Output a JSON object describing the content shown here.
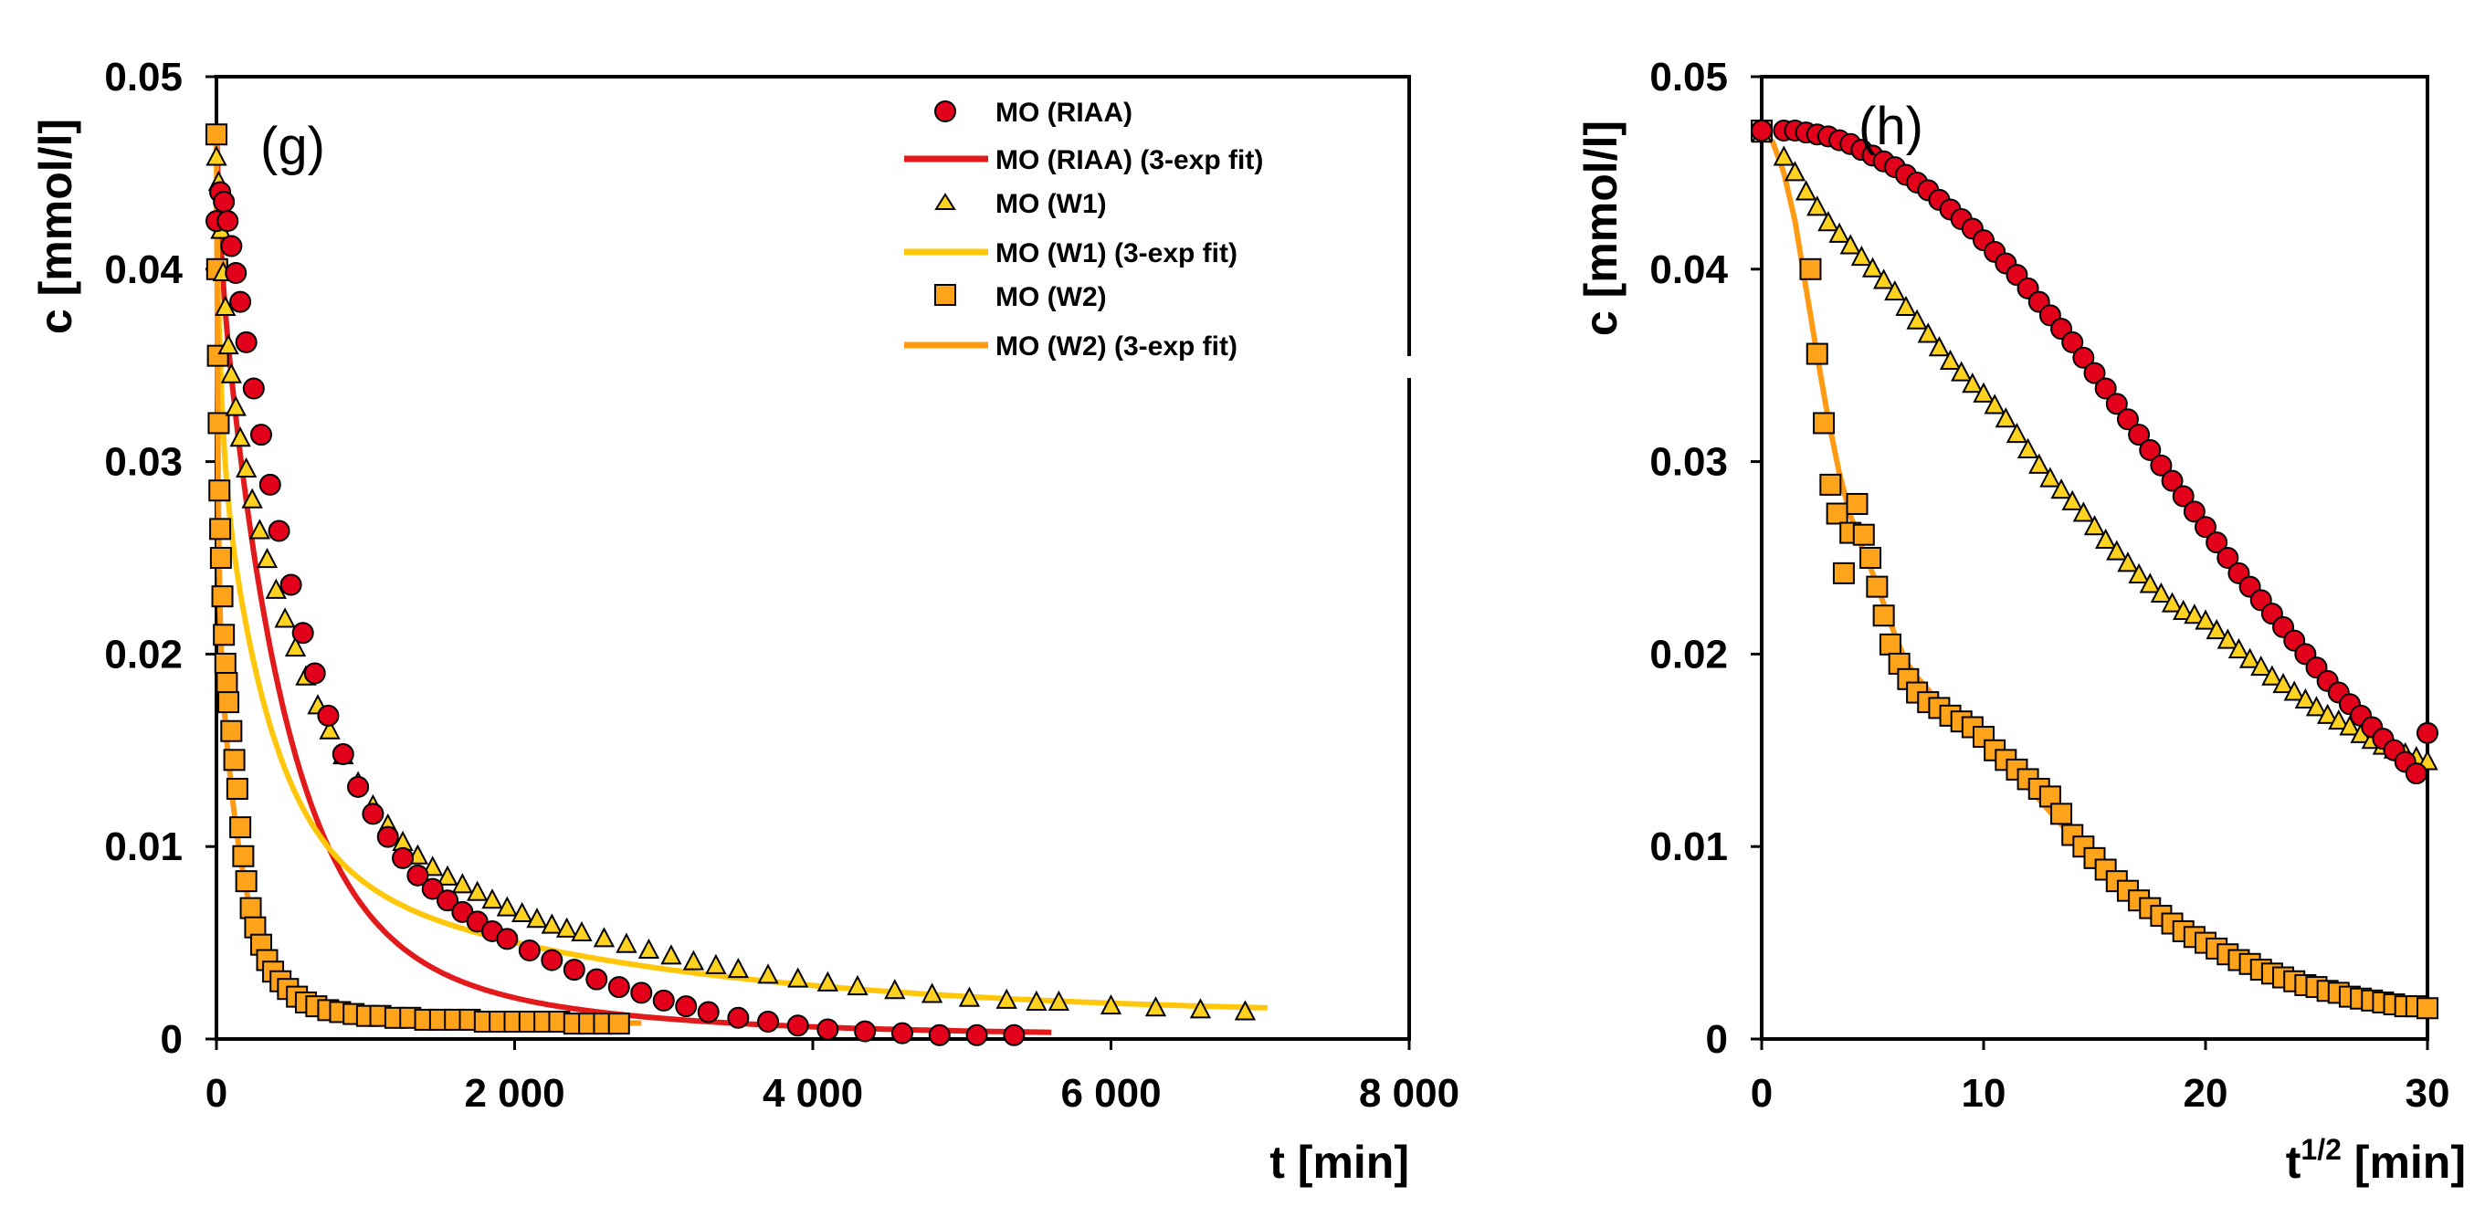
{
  "colors": {
    "riaa_marker": "#e3001b",
    "riaa_fit": "#e31a1c",
    "w1_marker": "#ffd21f",
    "w1_fit": "#ffc60a",
    "w2_marker": "#ffa31a",
    "w2_fit": "#ff9a12",
    "edge": "#000000"
  },
  "legend": {
    "entries": [
      {
        "label": "MO (RIAA)",
        "kind": "marker",
        "shape": "circle",
        "series": "riaa"
      },
      {
        "label": "MO (RIAA) (3-exp fit)",
        "kind": "line",
        "series": "riaa"
      },
      {
        "label": "MO (W1)",
        "kind": "marker",
        "shape": "triangle",
        "series": "w1"
      },
      {
        "label": "MO (W1) (3-exp fit)",
        "kind": "line",
        "series": "w1"
      },
      {
        "label": "MO (W2)",
        "kind": "marker",
        "shape": "square",
        "series": "w2"
      },
      {
        "label": "MO (W2) (3-exp fit)",
        "kind": "line",
        "series": "w2"
      }
    ]
  },
  "chart_data": [
    {
      "type": "scatter",
      "panel_label": "(g)",
      "xlabel": "t [min]",
      "ylabel": "c [mmol/l]",
      "xlim": [
        0,
        8000
      ],
      "ylim": [
        0,
        0.05
      ],
      "xticks": [
        0,
        2000,
        4000,
        6000,
        8000
      ],
      "xtick_labels": [
        "0",
        "2 000",
        "4 000",
        "6 000",
        "8 000"
      ],
      "yticks": [
        0,
        0.01,
        0.02,
        0.03,
        0.04,
        0.05
      ],
      "ytick_labels": [
        "0",
        "0.01",
        "0.02",
        "0.03",
        "0.04",
        "0.05"
      ],
      "series": [
        {
          "name": "MO (RIAA)",
          "key": "riaa",
          "marker": "circle",
          "x": [
            0,
            25,
            50,
            75,
            100,
            130,
            160,
            200,
            250,
            300,
            360,
            420,
            500,
            580,
            660,
            750,
            850,
            950,
            1050,
            1150,
            1250,
            1350,
            1450,
            1550,
            1650,
            1750,
            1850,
            1950,
            2100,
            2250,
            2400,
            2550,
            2700,
            2850,
            3000,
            3150,
            3300,
            3500,
            3700,
            3900,
            4100,
            4350,
            4600,
            4850,
            5100,
            5350
          ],
          "y": [
            0.0425,
            0.044,
            0.0435,
            0.0425,
            0.0412,
            0.0398,
            0.0383,
            0.0362,
            0.0338,
            0.0314,
            0.0288,
            0.0264,
            0.0236,
            0.0211,
            0.019,
            0.0168,
            0.0148,
            0.0131,
            0.0117,
            0.0105,
            0.0094,
            0.0085,
            0.0078,
            0.0072,
            0.0066,
            0.0061,
            0.0056,
            0.0052,
            0.0046,
            0.0041,
            0.0036,
            0.0031,
            0.0027,
            0.0024,
            0.002,
            0.0017,
            0.0014,
            0.0011,
            0.0009,
            0.0007,
            0.0005,
            0.0004,
            0.0003,
            0.0002,
            0.0002,
            0.0002
          ]
        },
        {
          "name": "MO (W1)",
          "key": "w1",
          "marker": "triangle",
          "x": [
            0,
            15,
            30,
            45,
            60,
            80,
            100,
            130,
            160,
            200,
            240,
            290,
            340,
            400,
            460,
            530,
            600,
            680,
            760,
            850,
            950,
            1050,
            1150,
            1250,
            1350,
            1450,
            1550,
            1650,
            1750,
            1850,
            1950,
            2050,
            2150,
            2250,
            2350,
            2450,
            2600,
            2750,
            2900,
            3050,
            3200,
            3350,
            3500,
            3700,
            3900,
            4100,
            4300,
            4550,
            4800,
            5050,
            5300,
            5500,
            5650,
            6000,
            6300,
            6600,
            6900
          ],
          "y": [
            0.0458,
            0.0445,
            0.042,
            0.0398,
            0.038,
            0.036,
            0.0345,
            0.0328,
            0.0312,
            0.0296,
            0.028,
            0.0264,
            0.0249,
            0.0233,
            0.0218,
            0.0203,
            0.0188,
            0.0173,
            0.016,
            0.0147,
            0.0133,
            0.0121,
            0.0111,
            0.0102,
            0.0095,
            0.0089,
            0.0084,
            0.008,
            0.0076,
            0.0072,
            0.0068,
            0.0065,
            0.0062,
            0.0059,
            0.0057,
            0.0055,
            0.0052,
            0.0049,
            0.0046,
            0.0043,
            0.004,
            0.0038,
            0.0036,
            0.0033,
            0.0031,
            0.0029,
            0.0027,
            0.0025,
            0.0023,
            0.0021,
            0.002,
            0.0019,
            0.0019,
            0.0017,
            0.0016,
            0.0015,
            0.0014
          ]
        },
        {
          "name": "MO (W2)",
          "key": "w2",
          "marker": "square",
          "x": [
            0,
            5,
            10,
            15,
            20,
            25,
            30,
            40,
            50,
            60,
            70,
            80,
            100,
            120,
            140,
            160,
            180,
            200,
            230,
            260,
            300,
            340,
            380,
            430,
            480,
            540,
            600,
            670,
            750,
            830,
            920,
            1010,
            1100,
            1200,
            1300,
            1400,
            1500,
            1600,
            1700,
            1800,
            1900,
            2000,
            2100,
            2200,
            2300,
            2400,
            2500,
            2600,
            2700
          ],
          "y": [
            0.047,
            0.04,
            0.0355,
            0.032,
            0.0285,
            0.0265,
            0.025,
            0.023,
            0.021,
            0.0195,
            0.0185,
            0.0175,
            0.016,
            0.0145,
            0.013,
            0.011,
            0.0095,
            0.0082,
            0.0068,
            0.0058,
            0.0049,
            0.0041,
            0.0035,
            0.003,
            0.0026,
            0.0022,
            0.0019,
            0.0017,
            0.0015,
            0.0014,
            0.0013,
            0.0012,
            0.0012,
            0.0011,
            0.0011,
            0.001,
            0.001,
            0.001,
            0.001,
            0.0009,
            0.0009,
            0.0009,
            0.0009,
            0.0009,
            0.0009,
            0.0008,
            0.0008,
            0.0008,
            0.0008
          ]
        }
      ],
      "fits": [
        {
          "name": "MO (RIAA) (3-exp fit)",
          "key": "riaa",
          "x_start": 0,
          "x_end": 5600,
          "a": [
            0.0048,
            0.036,
            0.0062
          ],
          "tau": [
            25,
            420,
            1500
          ],
          "offset": 0.0002
        },
        {
          "name": "MO (W1) (3-exp fit)",
          "key": "w1",
          "x_start": 0,
          "x_end": 7050,
          "a": [
            0.011,
            0.022,
            0.009
          ],
          "tau": [
            30,
            330,
            2300
          ],
          "offset": 0.0012
        },
        {
          "name": "MO (W2) (3-exp fit)",
          "key": "w2",
          "x_start": 0,
          "x_end": 2850,
          "a": [
            0.024,
            0.02,
            0.0023
          ],
          "tau": [
            10,
            150,
            650
          ],
          "offset": 0.0008
        }
      ]
    },
    {
      "type": "scatter",
      "panel_label": "(h)",
      "xlabel_main": "t",
      "xlabel_sup": "1/2",
      "xlabel_unit": " [min]",
      "ylabel": "c [mmol/l]",
      "xlim": [
        0,
        30
      ],
      "ylim": [
        0,
        0.05
      ],
      "xticks": [
        0,
        10,
        20,
        30
      ],
      "xtick_labels": [
        "0",
        "10",
        "20",
        "30"
      ],
      "yticks": [
        0,
        0.01,
        0.02,
        0.03,
        0.04,
        0.05
      ],
      "ytick_labels": [
        "0",
        "0.01",
        "0.02",
        "0.03",
        "0.04",
        "0.05"
      ],
      "series": [
        {
          "name": "MO (RIAA)",
          "key": "riaa",
          "marker": "circle",
          "x": [
            0,
            1.0,
            1.5,
            2.0,
            2.5,
            3.0,
            3.5,
            4.0,
            4.5,
            5.0,
            5.5,
            6.0,
            6.5,
            7.0,
            7.5,
            8.0,
            8.5,
            9.0,
            9.5,
            10.0,
            10.5,
            11.0,
            11.5,
            12.0,
            12.5,
            13.0,
            13.5,
            14.0,
            14.5,
            15.0,
            15.5,
            16.0,
            16.5,
            17.0,
            17.5,
            18.0,
            18.5,
            19.0,
            19.5,
            20.0,
            20.5,
            21.0,
            21.5,
            22.0,
            22.5,
            23.0,
            23.5,
            24.0,
            24.5,
            25.0,
            25.5,
            26.0,
            26.5,
            27.0,
            27.5,
            28.0,
            28.5,
            29.0,
            29.5,
            30.0
          ],
          "y": [
            0.0472,
            0.0472,
            0.0472,
            0.0471,
            0.047,
            0.0469,
            0.0467,
            0.0465,
            0.0462,
            0.0459,
            0.0456,
            0.0453,
            0.0449,
            0.0445,
            0.0441,
            0.0436,
            0.0431,
            0.0426,
            0.0421,
            0.0415,
            0.0409,
            0.0403,
            0.0397,
            0.039,
            0.0383,
            0.0376,
            0.0369,
            0.0362,
            0.0354,
            0.0346,
            0.0338,
            0.033,
            0.0322,
            0.0314,
            0.0306,
            0.0298,
            0.029,
            0.0282,
            0.0274,
            0.0266,
            0.0258,
            0.025,
            0.0242,
            0.0235,
            0.0228,
            0.0221,
            0.0214,
            0.0207,
            0.02,
            0.0193,
            0.0186,
            0.018,
            0.0174,
            0.0168,
            0.0162,
            0.0156,
            0.015,
            0.0144,
            0.0138,
            0.0159
          ]
        },
        {
          "name": "MO (W1)",
          "key": "w1",
          "marker": "triangle",
          "x": [
            0,
            1.0,
            1.5,
            2.0,
            2.5,
            3.0,
            3.5,
            4.0,
            4.5,
            5.0,
            5.5,
            6.0,
            6.5,
            7.0,
            7.5,
            8.0,
            8.5,
            9.0,
            9.5,
            10.0,
            10.5,
            11.0,
            11.5,
            12.0,
            12.5,
            13.0,
            13.5,
            14.0,
            14.5,
            15.0,
            15.5,
            16.0,
            16.5,
            17.0,
            17.5,
            18.0,
            18.5,
            19.0,
            19.5,
            20.0,
            20.5,
            21.0,
            21.5,
            22.0,
            22.5,
            23.0,
            23.5,
            24.0,
            24.5,
            25.0,
            25.5,
            26.0,
            26.5,
            27.0,
            27.5,
            28.0,
            28.5,
            29.0,
            29.5,
            30.0
          ],
          "y": [
            0.047,
            0.0458,
            0.045,
            0.044,
            0.0432,
            0.0424,
            0.0418,
            0.0412,
            0.0406,
            0.04,
            0.0394,
            0.0388,
            0.038,
            0.0373,
            0.0366,
            0.0359,
            0.0352,
            0.0346,
            0.034,
            0.0335,
            0.0329,
            0.0322,
            0.0314,
            0.0306,
            0.0298,
            0.0291,
            0.0285,
            0.0279,
            0.0273,
            0.0266,
            0.0259,
            0.0253,
            0.0247,
            0.0241,
            0.0236,
            0.0231,
            0.0226,
            0.0222,
            0.022,
            0.0217,
            0.0212,
            0.0207,
            0.0202,
            0.0197,
            0.0193,
            0.0188,
            0.0184,
            0.018,
            0.0176,
            0.0172,
            0.0168,
            0.0165,
            0.0162,
            0.0158,
            0.0155,
            0.0152,
            0.015,
            0.0148,
            0.0146,
            0.0144
          ]
        },
        {
          "name": "MO (W2)",
          "key": "w2",
          "marker": "square",
          "x": [
            0,
            2.2,
            2.5,
            2.8,
            3.1,
            3.4,
            3.7,
            4.0,
            4.3,
            4.6,
            4.9,
            5.2,
            5.5,
            5.8,
            6.2,
            6.6,
            7.0,
            7.5,
            8.0,
            8.5,
            9.0,
            9.5,
            10.0,
            10.5,
            11.0,
            11.5,
            12.0,
            12.5,
            13.0,
            13.5,
            14.0,
            14.5,
            15.0,
            15.5,
            16.0,
            16.5,
            17.0,
            17.5,
            18.0,
            18.5,
            19.0,
            19.5,
            20.0,
            20.5,
            21.0,
            21.5,
            22.0,
            22.5,
            23.0,
            23.5,
            24.0,
            24.5,
            25.0,
            25.5,
            26.0,
            26.5,
            27.0,
            27.5,
            28.0,
            28.5,
            29.0,
            29.5,
            30.0
          ],
          "y": [
            0.0472,
            0.04,
            0.0356,
            0.032,
            0.0288,
            0.0273,
            0.0242,
            0.0263,
            0.0278,
            0.0262,
            0.025,
            0.0235,
            0.022,
            0.0205,
            0.0195,
            0.0187,
            0.018,
            0.0175,
            0.0172,
            0.0168,
            0.0165,
            0.0162,
            0.0157,
            0.015,
            0.0145,
            0.014,
            0.0135,
            0.013,
            0.0126,
            0.0117,
            0.0106,
            0.01,
            0.0094,
            0.0088,
            0.0082,
            0.0077,
            0.0072,
            0.0068,
            0.0064,
            0.006,
            0.0056,
            0.0053,
            0.005,
            0.0047,
            0.0044,
            0.0041,
            0.0039,
            0.0036,
            0.0034,
            0.0032,
            0.003,
            0.0028,
            0.0027,
            0.0025,
            0.0024,
            0.0022,
            0.0021,
            0.002,
            0.0019,
            0.0018,
            0.0017,
            0.0017,
            0.0016
          ]
        }
      ],
      "fits": [
        {
          "name": "MO (W2) (3-exp fit)",
          "key": "w2",
          "x": [
            0,
            0.5,
            1.0,
            1.5,
            2.0,
            2.5,
            3.0,
            3.5,
            4.0,
            4.5,
            5.0,
            5.5,
            6.0,
            6.5,
            7.0,
            8.0,
            9.0,
            10.0,
            11.0,
            12.0,
            13.0,
            14.0,
            15.0,
            16.0,
            17.0,
            18.0,
            19.0,
            20.0,
            22.0,
            24.0,
            26.0,
            28.0,
            30.0
          ],
          "y": [
            0.0472,
            0.0466,
            0.045,
            0.0425,
            0.039,
            0.0355,
            0.0322,
            0.0294,
            0.0272,
            0.0256,
            0.0242,
            0.0226,
            0.021,
            0.0196,
            0.0188,
            0.0175,
            0.0165,
            0.0155,
            0.0143,
            0.0131,
            0.0118,
            0.0105,
            0.0094,
            0.0083,
            0.0074,
            0.0066,
            0.0059,
            0.0053,
            0.0042,
            0.0033,
            0.0026,
            0.002,
            0.0016
          ]
        }
      ]
    }
  ]
}
